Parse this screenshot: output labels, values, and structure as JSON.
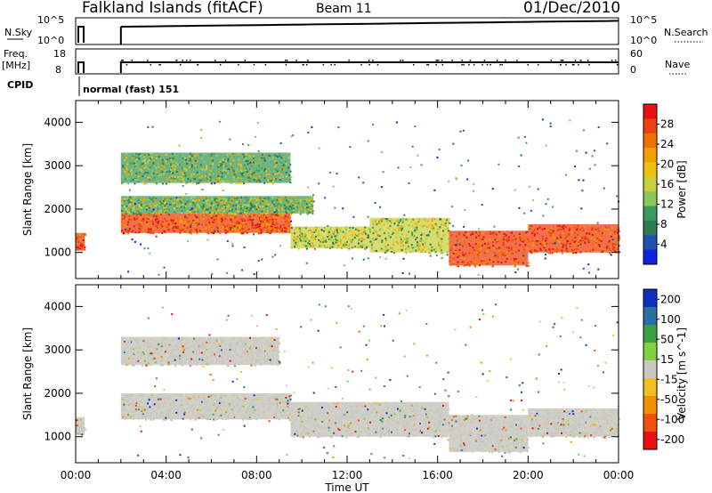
{
  "header": {
    "station": "Falkland Islands (fitACF)",
    "beam": "Beam 11",
    "date": "01/Dec/2010"
  },
  "param_strips": {
    "nsky_label": "N.Sky",
    "nsky_ticks": [
      "10^5",
      "10^0"
    ],
    "nsearch_label": "N.Search",
    "nsearch_ticks": [
      "10^5",
      "10^0"
    ],
    "freq_label": "Freq.",
    "freq_unit": "[MHz]",
    "freq_ticks": [
      "18",
      "8"
    ],
    "nave_label": "Nave",
    "nave_ticks": [
      "60",
      "0"
    ],
    "cpid_label": "CPID",
    "cpid_value": "normal (fast) 151"
  },
  "chart_data": [
    {
      "type": "heatmap",
      "panel": "power",
      "ylabel": "Slant Range [km]",
      "yticks": [
        "1000",
        "2000",
        "3000",
        "4000"
      ],
      "ylim": [
        400,
        4500
      ],
      "xlim": [
        0,
        24
      ],
      "colorbar": {
        "label": "Power [dB]",
        "ticks": [
          "4",
          "8",
          "12",
          "16",
          "20",
          "24",
          "28"
        ],
        "colors": [
          "#1020e0",
          "#2050b0",
          "#2e7a55",
          "#3c9a5a",
          "#8ac85a",
          "#c8d040",
          "#f0c010",
          "#f0a000",
          "#f07000",
          "#ee4010",
          "#e81010"
        ]
      },
      "bands": [
        {
          "t_start": 0.0,
          "t_end": 0.4,
          "r_low": 1050,
          "r_high": 1450,
          "level": "high"
        },
        {
          "t_start": 2.0,
          "t_end": 9.5,
          "r_low": 1450,
          "r_high": 1900,
          "level": "high"
        },
        {
          "t_start": 9.5,
          "t_end": 13.0,
          "r_low": 1100,
          "r_high": 1600,
          "level": "medium"
        },
        {
          "t_start": 13.0,
          "t_end": 16.5,
          "r_low": 1000,
          "r_high": 1800,
          "level": "medium"
        },
        {
          "t_start": 16.5,
          "t_end": 20.0,
          "r_low": 700,
          "r_high": 1500,
          "level": "high"
        },
        {
          "t_start": 20.0,
          "t_end": 24.0,
          "r_low": 1000,
          "r_high": 1650,
          "level": "high"
        },
        {
          "t_start": 2.0,
          "t_end": 9.5,
          "r_low": 2600,
          "r_high": 3300,
          "level": "low"
        },
        {
          "t_start": 2.0,
          "t_end": 10.5,
          "r_low": 1900,
          "r_high": 2300,
          "level": "low"
        }
      ]
    },
    {
      "type": "heatmap",
      "panel": "velocity",
      "ylabel": "Slant Range [km]",
      "yticks": [
        "1000",
        "2000",
        "3000",
        "4000"
      ],
      "ylim": [
        400,
        4500
      ],
      "xlim": [
        0,
        24
      ],
      "xlabel": "Time UT",
      "xticks": [
        "00:00",
        "04:00",
        "08:00",
        "12:00",
        "16:00",
        "20:00",
        "00:00"
      ],
      "colorbar": {
        "label": "Velocity [m s^-1]",
        "ticks": [
          "200",
          "100",
          "50",
          "15",
          "-15",
          "-50",
          "-100",
          "-200"
        ],
        "colors": [
          "#1030c0",
          "#2a70a0",
          "#3aa040",
          "#80d040",
          "#c8c8c0",
          "#f0c020",
          "#f09000",
          "#f05010",
          "#e81010"
        ]
      },
      "bands": [
        {
          "t_start": 0.0,
          "t_end": 0.4,
          "r_low": 1050,
          "r_high": 1450,
          "level": "ground"
        },
        {
          "t_start": 2.0,
          "t_end": 9.5,
          "r_low": 1400,
          "r_high": 2000,
          "level": "ground"
        },
        {
          "t_start": 9.5,
          "t_end": 16.5,
          "r_low": 1000,
          "r_high": 1800,
          "level": "ground"
        },
        {
          "t_start": 16.5,
          "t_end": 20.0,
          "r_low": 650,
          "r_high": 1500,
          "level": "ground"
        },
        {
          "t_start": 20.0,
          "t_end": 24.0,
          "r_low": 1000,
          "r_high": 1650,
          "level": "ground"
        },
        {
          "t_start": 2.0,
          "t_end": 9.0,
          "r_low": 2650,
          "r_high": 3300,
          "level": "ground"
        }
      ]
    }
  ]
}
